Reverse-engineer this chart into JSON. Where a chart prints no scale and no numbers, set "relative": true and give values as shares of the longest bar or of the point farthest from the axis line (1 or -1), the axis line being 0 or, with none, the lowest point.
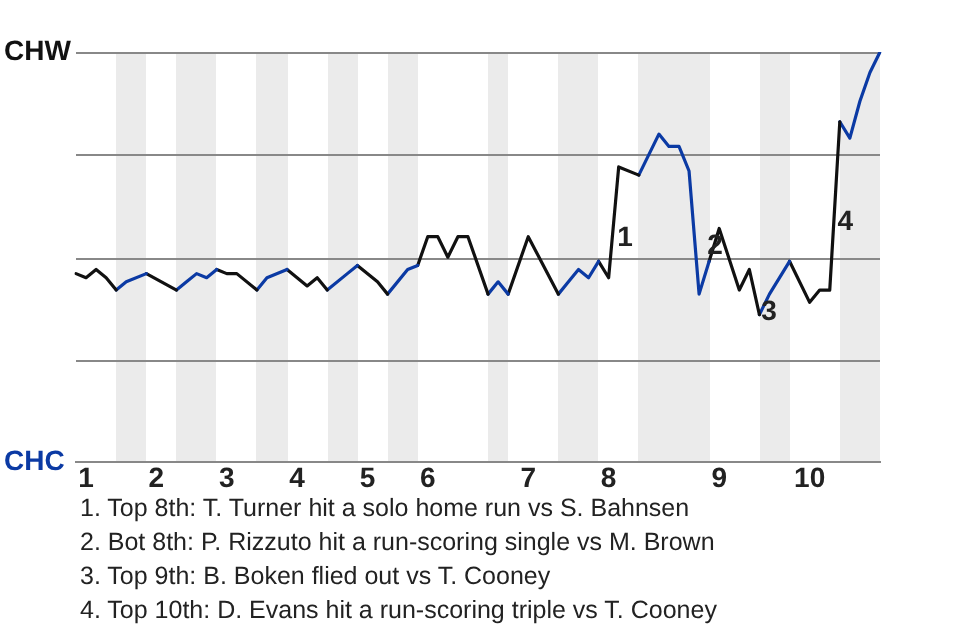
{
  "chart_data": {
    "type": "line",
    "relative": true,
    "grid": "y",
    "marker": "none",
    "line_style": "solid",
    "categories": [
      null,
      "1",
      null,
      null,
      null,
      null,
      null,
      null,
      "2",
      null,
      null,
      null,
      null,
      null,
      null,
      "3",
      null,
      null,
      null,
      null,
      null,
      null,
      "4",
      null,
      null,
      null,
      null,
      null,
      null,
      "5",
      null,
      null,
      null,
      null,
      null,
      "6",
      null,
      null,
      null,
      null,
      null,
      null,
      null,
      null,
      null,
      "7",
      null,
      null,
      null,
      null,
      null,
      null,
      null,
      "8",
      null,
      null,
      null,
      null,
      null,
      null,
      null,
      null,
      null,
      null,
      "9",
      null,
      null,
      null,
      null,
      null,
      null,
      null,
      null,
      "10",
      null,
      null,
      null,
      null,
      null,
      null,
      null
    ],
    "series": [
      {
        "color": "#111111",
        "values": [
          0.46,
          0.45,
          0.47,
          0.45,
          0.42,
          null,
          null,
          null,
          null,
          null,
          null,
          null,
          null,
          null,
          null,
          null,
          null,
          null,
          null,
          null,
          null,
          null,
          null,
          null,
          null,
          null,
          null,
          null,
          null,
          null,
          null,
          null,
          null,
          null,
          null,
          null,
          null,
          null,
          null,
          null,
          null,
          null,
          null,
          null,
          null,
          null,
          null,
          null,
          null,
          null,
          null,
          null,
          null,
          null,
          null,
          null,
          null,
          null,
          null,
          null,
          null,
          null,
          null,
          null,
          null,
          null,
          null,
          null,
          null,
          null,
          null,
          null,
          null,
          null,
          null,
          null,
          null,
          null,
          null,
          null,
          null
        ]
      },
      {
        "color": "#0b3aa4",
        "values": [
          null,
          null,
          null,
          null,
          0.42,
          0.44,
          null,
          0.46,
          null,
          null,
          null,
          null,
          null,
          null,
          null,
          null,
          null,
          null,
          null,
          null,
          null,
          null,
          null,
          null,
          null,
          null,
          null,
          null,
          null,
          null,
          null,
          null,
          null,
          null,
          null,
          null,
          null,
          null,
          null,
          null,
          null,
          null,
          null,
          null,
          null,
          null,
          null,
          null,
          null,
          null,
          null,
          null,
          null,
          null,
          null,
          null,
          null,
          null,
          null,
          null,
          null,
          null,
          null,
          null,
          null,
          null,
          null,
          null,
          null,
          null,
          null,
          null,
          null,
          null,
          null,
          null,
          null,
          null,
          null,
          null,
          null
        ]
      },
      {
        "color": "#111111",
        "values": [
          null,
          null,
          null,
          null,
          null,
          null,
          null,
          0.46,
          null,
          null,
          0.42,
          null,
          null,
          null,
          null,
          null,
          null,
          null,
          null,
          null,
          null,
          null,
          null,
          null,
          null,
          null,
          null,
          null,
          null,
          null,
          null,
          null,
          null,
          null,
          null,
          null,
          null,
          null,
          null,
          null,
          null,
          null,
          null,
          null,
          null,
          null,
          null,
          null,
          null,
          null,
          null,
          null,
          null,
          null,
          null,
          null,
          null,
          null,
          null,
          null,
          null,
          null,
          null,
          null,
          null,
          null,
          null,
          null,
          null,
          null,
          null,
          null,
          null,
          null,
          null,
          null,
          null,
          null,
          null,
          null,
          null
        ]
      },
      {
        "color": "#0b3aa4",
        "values": [
          null,
          null,
          null,
          null,
          null,
          null,
          null,
          null,
          null,
          null,
          0.42,
          0.44,
          0.46,
          0.45,
          0.47,
          null,
          null,
          null,
          null,
          null,
          null,
          null,
          null,
          null,
          null,
          null,
          null,
          null,
          null,
          null,
          null,
          null,
          null,
          null,
          null,
          null,
          null,
          null,
          null,
          null,
          null,
          null,
          null,
          null,
          null,
          null,
          null,
          null,
          null,
          null,
          null,
          null,
          null,
          null,
          null,
          null,
          null,
          null,
          null,
          null,
          null,
          null,
          null,
          null,
          null,
          null,
          null,
          null,
          null,
          null,
          null,
          null,
          null,
          null,
          null,
          null,
          null,
          null,
          null,
          null,
          null
        ]
      },
      {
        "color": "#111111",
        "values": [
          null,
          null,
          null,
          null,
          null,
          null,
          null,
          null,
          null,
          null,
          null,
          null,
          null,
          null,
          0.47,
          0.46,
          0.46,
          null,
          0.42,
          null,
          null,
          null,
          null,
          null,
          null,
          null,
          null,
          null,
          null,
          null,
          null,
          null,
          null,
          null,
          null,
          null,
          null,
          null,
          null,
          null,
          null,
          null,
          null,
          null,
          null,
          null,
          null,
          null,
          null,
          null,
          null,
          null,
          null,
          null,
          null,
          null,
          null,
          null,
          null,
          null,
          null,
          null,
          null,
          null,
          null,
          null,
          null,
          null,
          null,
          null,
          null,
          null,
          null,
          null,
          null,
          null,
          null,
          null,
          null,
          null,
          null
        ]
      },
      {
        "color": "#0b3aa4",
        "values": [
          null,
          null,
          null,
          null,
          null,
          null,
          null,
          null,
          null,
          null,
          null,
          null,
          null,
          null,
          null,
          null,
          null,
          null,
          0.42,
          0.45,
          null,
          0.47,
          null,
          null,
          null,
          null,
          null,
          null,
          null,
          null,
          null,
          null,
          null,
          null,
          null,
          null,
          null,
          null,
          null,
          null,
          null,
          null,
          null,
          null,
          null,
          null,
          null,
          null,
          null,
          null,
          null,
          null,
          null,
          null,
          null,
          null,
          null,
          null,
          null,
          null,
          null,
          null,
          null,
          null,
          null,
          null,
          null,
          null,
          null,
          null,
          null,
          null,
          null,
          null,
          null,
          null,
          null,
          null,
          null,
          null,
          null
        ]
      },
      {
        "color": "#111111",
        "values": [
          null,
          null,
          null,
          null,
          null,
          null,
          null,
          null,
          null,
          null,
          null,
          null,
          null,
          null,
          null,
          null,
          null,
          null,
          null,
          null,
          null,
          0.47,
          null,
          0.43,
          0.45,
          0.42,
          null,
          null,
          null,
          null,
          null,
          null,
          null,
          null,
          null,
          null,
          null,
          null,
          null,
          null,
          null,
          null,
          null,
          null,
          null,
          null,
          null,
          null,
          null,
          null,
          null,
          null,
          null,
          null,
          null,
          null,
          null,
          null,
          null,
          null,
          null,
          null,
          null,
          null,
          null,
          null,
          null,
          null,
          null,
          null,
          null,
          null,
          null,
          null,
          null,
          null,
          null,
          null,
          null,
          null,
          null
        ]
      },
      {
        "color": "#0b3aa4",
        "values": [
          null,
          null,
          null,
          null,
          null,
          null,
          null,
          null,
          null,
          null,
          null,
          null,
          null,
          null,
          null,
          null,
          null,
          null,
          null,
          null,
          null,
          null,
          null,
          null,
          null,
          0.42,
          null,
          0.46,
          0.48,
          null,
          null,
          null,
          null,
          null,
          null,
          null,
          null,
          null,
          null,
          null,
          null,
          null,
          null,
          null,
          null,
          null,
          null,
          null,
          null,
          null,
          null,
          null,
          null,
          null,
          null,
          null,
          null,
          null,
          null,
          null,
          null,
          null,
          null,
          null,
          null,
          null,
          null,
          null,
          null,
          null,
          null,
          null,
          null,
          null,
          null,
          null,
          null,
          null,
          null,
          null,
          null
        ]
      },
      {
        "color": "#111111",
        "values": [
          null,
          null,
          null,
          null,
          null,
          null,
          null,
          null,
          null,
          null,
          null,
          null,
          null,
          null,
          null,
          null,
          null,
          null,
          null,
          null,
          null,
          null,
          null,
          null,
          null,
          null,
          null,
          null,
          0.48,
          null,
          0.44,
          0.41,
          null,
          null,
          null,
          null,
          null,
          null,
          null,
          null,
          null,
          null,
          null,
          null,
          null,
          null,
          null,
          null,
          null,
          null,
          null,
          null,
          null,
          null,
          null,
          null,
          null,
          null,
          null,
          null,
          null,
          null,
          null,
          null,
          null,
          null,
          null,
          null,
          null,
          null,
          null,
          null,
          null,
          null,
          null,
          null,
          null,
          null,
          null,
          null,
          null
        ]
      },
      {
        "color": "#0b3aa4",
        "values": [
          null,
          null,
          null,
          null,
          null,
          null,
          null,
          null,
          null,
          null,
          null,
          null,
          null,
          null,
          null,
          null,
          null,
          null,
          null,
          null,
          null,
          null,
          null,
          null,
          null,
          null,
          null,
          null,
          null,
          null,
          null,
          0.41,
          null,
          0.47,
          0.48,
          null,
          null,
          null,
          null,
          null,
          null,
          null,
          null,
          null,
          null,
          null,
          null,
          null,
          null,
          null,
          null,
          null,
          null,
          null,
          null,
          null,
          null,
          null,
          null,
          null,
          null,
          null,
          null,
          null,
          null,
          null,
          null,
          null,
          null,
          null,
          null,
          null,
          null,
          null,
          null,
          null,
          null,
          null,
          null,
          null,
          null
        ]
      },
      {
        "color": "#111111",
        "values": [
          null,
          null,
          null,
          null,
          null,
          null,
          null,
          null,
          null,
          null,
          null,
          null,
          null,
          null,
          null,
          null,
          null,
          null,
          null,
          null,
          null,
          null,
          null,
          null,
          null,
          null,
          null,
          null,
          null,
          null,
          null,
          null,
          null,
          null,
          0.48,
          0.55,
          0.55,
          0.5,
          0.55,
          0.55,
          null,
          0.41,
          null,
          null,
          null,
          null,
          null,
          null,
          null,
          null,
          null,
          null,
          null,
          null,
          null,
          null,
          null,
          null,
          null,
          null,
          null,
          null,
          null,
          null,
          null,
          null,
          null,
          null,
          null,
          null,
          null,
          null,
          null,
          null,
          null,
          null,
          null,
          null,
          null,
          null,
          null
        ]
      },
      {
        "color": "#0b3aa4",
        "values": [
          null,
          null,
          null,
          null,
          null,
          null,
          null,
          null,
          null,
          null,
          null,
          null,
          null,
          null,
          null,
          null,
          null,
          null,
          null,
          null,
          null,
          null,
          null,
          null,
          null,
          null,
          null,
          null,
          null,
          null,
          null,
          null,
          null,
          null,
          null,
          null,
          null,
          null,
          null,
          null,
          null,
          0.41,
          0.44,
          0.41,
          null,
          null,
          null,
          null,
          null,
          null,
          null,
          null,
          null,
          null,
          null,
          null,
          null,
          null,
          null,
          null,
          null,
          null,
          null,
          null,
          null,
          null,
          null,
          null,
          null,
          null,
          null,
          null,
          null,
          null,
          null,
          null,
          null,
          null,
          null,
          null,
          null
        ]
      },
      {
        "color": "#111111",
        "values": [
          null,
          null,
          null,
          null,
          null,
          null,
          null,
          null,
          null,
          null,
          null,
          null,
          null,
          null,
          null,
          null,
          null,
          null,
          null,
          null,
          null,
          null,
          null,
          null,
          null,
          null,
          null,
          null,
          null,
          null,
          null,
          null,
          null,
          null,
          null,
          null,
          null,
          null,
          null,
          null,
          null,
          null,
          null,
          0.41,
          null,
          0.55,
          null,
          null,
          0.41,
          null,
          null,
          null,
          null,
          null,
          null,
          null,
          null,
          null,
          null,
          null,
          null,
          null,
          null,
          null,
          null,
          null,
          null,
          null,
          null,
          null,
          null,
          null,
          null,
          null,
          null,
          null,
          null,
          null,
          null,
          null,
          null
        ]
      },
      {
        "color": "#0b3aa4",
        "values": [
          null,
          null,
          null,
          null,
          null,
          null,
          null,
          null,
          null,
          null,
          null,
          null,
          null,
          null,
          null,
          null,
          null,
          null,
          null,
          null,
          null,
          null,
          null,
          null,
          null,
          null,
          null,
          null,
          null,
          null,
          null,
          null,
          null,
          null,
          null,
          null,
          null,
          null,
          null,
          null,
          null,
          null,
          null,
          null,
          null,
          null,
          null,
          null,
          0.41,
          0.44,
          0.47,
          0.45,
          0.49,
          null,
          null,
          null,
          null,
          null,
          null,
          null,
          null,
          null,
          null,
          null,
          null,
          null,
          null,
          null,
          null,
          null,
          null,
          null,
          null,
          null,
          null,
          null,
          null,
          null,
          null,
          null,
          null
        ]
      },
      {
        "color": "#111111",
        "values": [
          null,
          null,
          null,
          null,
          null,
          null,
          null,
          null,
          null,
          null,
          null,
          null,
          null,
          null,
          null,
          null,
          null,
          null,
          null,
          null,
          null,
          null,
          null,
          null,
          null,
          null,
          null,
          null,
          null,
          null,
          null,
          null,
          null,
          null,
          null,
          null,
          null,
          null,
          null,
          null,
          null,
          null,
          null,
          null,
          null,
          null,
          null,
          null,
          null,
          null,
          null,
          null,
          0.49,
          0.45,
          0.72,
          null,
          0.7,
          null,
          null,
          null,
          null,
          null,
          null,
          null,
          null,
          null,
          null,
          null,
          null,
          null,
          null,
          null,
          null,
          null,
          null,
          null,
          null,
          null,
          null,
          null,
          null
        ]
      },
      {
        "color": "#0b3aa4",
        "values": [
          null,
          null,
          null,
          null,
          null,
          null,
          null,
          null,
          null,
          null,
          null,
          null,
          null,
          null,
          null,
          null,
          null,
          null,
          null,
          null,
          null,
          null,
          null,
          null,
          null,
          null,
          null,
          null,
          null,
          null,
          null,
          null,
          null,
          null,
          null,
          null,
          null,
          null,
          null,
          null,
          null,
          null,
          null,
          null,
          null,
          null,
          null,
          null,
          null,
          null,
          null,
          null,
          null,
          null,
          null,
          null,
          0.7,
          null,
          0.8,
          0.77,
          0.77,
          0.71,
          0.41,
          0.49,
          null,
          null,
          null,
          null,
          null,
          null,
          null,
          null,
          null,
          null,
          null,
          null,
          null,
          null,
          null,
          null,
          null
        ]
      },
      {
        "color": "#111111",
        "values": [
          null,
          null,
          null,
          null,
          null,
          null,
          null,
          null,
          null,
          null,
          null,
          null,
          null,
          null,
          null,
          null,
          null,
          null,
          null,
          null,
          null,
          null,
          null,
          null,
          null,
          null,
          null,
          null,
          null,
          null,
          null,
          null,
          null,
          null,
          null,
          null,
          null,
          null,
          null,
          null,
          null,
          null,
          null,
          null,
          null,
          null,
          null,
          null,
          null,
          null,
          null,
          null,
          null,
          null,
          null,
          null,
          null,
          null,
          null,
          null,
          null,
          null,
          null,
          0.49,
          0.57,
          null,
          0.42,
          0.47,
          0.36,
          null,
          null,
          null,
          null,
          null,
          null,
          null,
          null,
          null,
          null,
          null,
          null
        ]
      },
      {
        "color": "#0b3aa4",
        "values": [
          null,
          null,
          null,
          null,
          null,
          null,
          null,
          null,
          null,
          null,
          null,
          null,
          null,
          null,
          null,
          null,
          null,
          null,
          null,
          null,
          null,
          null,
          null,
          null,
          null,
          null,
          null,
          null,
          null,
          null,
          null,
          null,
          null,
          null,
          null,
          null,
          null,
          null,
          null,
          null,
          null,
          null,
          null,
          null,
          null,
          null,
          null,
          null,
          null,
          null,
          null,
          null,
          null,
          null,
          null,
          null,
          null,
          null,
          null,
          null,
          null,
          null,
          null,
          null,
          null,
          null,
          null,
          null,
          0.36,
          0.41,
          null,
          0.49,
          null,
          null,
          null,
          null,
          null,
          null,
          null,
          null,
          null
        ]
      },
      {
        "color": "#111111",
        "values": [
          null,
          null,
          null,
          null,
          null,
          null,
          null,
          null,
          null,
          null,
          null,
          null,
          null,
          null,
          null,
          null,
          null,
          null,
          null,
          null,
          null,
          null,
          null,
          null,
          null,
          null,
          null,
          null,
          null,
          null,
          null,
          null,
          null,
          null,
          null,
          null,
          null,
          null,
          null,
          null,
          null,
          null,
          null,
          null,
          null,
          null,
          null,
          null,
          null,
          null,
          null,
          null,
          null,
          null,
          null,
          null,
          null,
          null,
          null,
          null,
          null,
          null,
          null,
          null,
          null,
          null,
          null,
          null,
          null,
          null,
          null,
          0.49,
          null,
          0.39,
          0.42,
          0.42,
          0.83,
          null,
          null,
          null,
          null
        ]
      },
      {
        "color": "#0b3aa4",
        "values": [
          null,
          null,
          null,
          null,
          null,
          null,
          null,
          null,
          null,
          null,
          null,
          null,
          null,
          null,
          null,
          null,
          null,
          null,
          null,
          null,
          null,
          null,
          null,
          null,
          null,
          null,
          null,
          null,
          null,
          null,
          null,
          null,
          null,
          null,
          null,
          null,
          null,
          null,
          null,
          null,
          null,
          null,
          null,
          null,
          null,
          null,
          null,
          null,
          null,
          null,
          null,
          null,
          null,
          null,
          null,
          null,
          null,
          null,
          null,
          null,
          null,
          null,
          null,
          null,
          null,
          null,
          null,
          null,
          null,
          null,
          null,
          null,
          null,
          null,
          null,
          null,
          0.83,
          0.79,
          0.88,
          0.95,
          1
        ]
      }
    ],
    "annotations": [
      "CHW",
      "CHC",
      "1",
      "2",
      "3",
      "4",
      "1. Top 8th: T. Turner hit a solo home run vs S. Bahnsen",
      "2. Bot 8th: P. Rizzuto hit a run-scoring single vs M. Brown",
      "3. Top 9th: B. Boken flied out vs T. Cooney",
      "4. Top 10th: D. Evans hit a run-scoring triple vs T. Cooney"
    ]
  }
}
